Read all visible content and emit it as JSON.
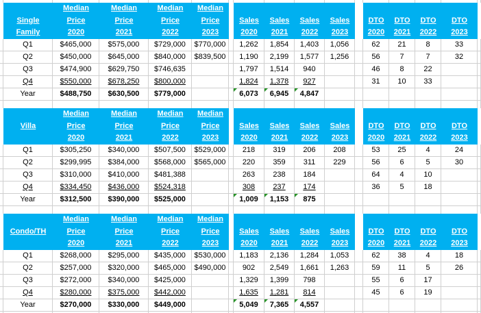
{
  "app": {
    "kind": "spreadsheet-region"
  },
  "colors": {
    "header_bg": "#00B0F0",
    "header_text": "#FFFFFF",
    "grid_line": "#CFCFCF",
    "cell_text": "#000000",
    "marker_green": "#279327"
  },
  "header_labels": {
    "median": "Median",
    "price": "Price",
    "sales": "Sales",
    "dto": "DTO"
  },
  "years": [
    "2020",
    "2021",
    "2022",
    "2023"
  ],
  "tables": [
    {
      "title": "Single Family",
      "title_lines": [
        "",
        "Single",
        "Family"
      ],
      "rows": [
        {
          "label": "Q1",
          "prices": [
            "$465,000",
            "$575,000",
            "$729,000",
            "$770,000"
          ],
          "sales": [
            "1,262",
            "1,854",
            "1,403",
            "1,056"
          ],
          "dto": [
            "62",
            "21",
            "8",
            "33"
          ]
        },
        {
          "label": "Q2",
          "prices": [
            "$450,000",
            "$645,000",
            "$840,000",
            "$839,500"
          ],
          "sales": [
            "1,190",
            "2,199",
            "1,577",
            "1,256"
          ],
          "dto": [
            "56",
            "7",
            "7",
            "32"
          ]
        },
        {
          "label": "Q3",
          "prices": [
            "$474,900",
            "$629,750",
            "$746,635",
            ""
          ],
          "sales": [
            "1,797",
            "1,514",
            "940",
            ""
          ],
          "dto": [
            "46",
            "8",
            "22",
            ""
          ]
        },
        {
          "label": "Q4",
          "underline": true,
          "prices": [
            "$550,000",
            "$678,250",
            "$800,000",
            ""
          ],
          "sales": [
            "1,824",
            "1,378",
            "927",
            ""
          ],
          "dto": [
            "31",
            "10",
            "33",
            ""
          ]
        },
        {
          "label": "Year",
          "bold": true,
          "markers": [
            0,
            1,
            2
          ],
          "prices": [
            "$488,750",
            "$630,500",
            "$779,000",
            ""
          ],
          "sales": [
            "6,073",
            "6,945",
            "4,847",
            ""
          ],
          "dto": [
            "",
            "",
            "",
            ""
          ]
        }
      ]
    },
    {
      "title": "Villa",
      "title_lines": [
        "",
        "Villa",
        ""
      ],
      "rows": [
        {
          "label": "Q1",
          "prices": [
            "$305,250",
            "$340,000",
            "$507,500",
            "$529,000"
          ],
          "sales": [
            "218",
            "319",
            "206",
            "208"
          ],
          "dto": [
            "53",
            "25",
            "4",
            "24"
          ]
        },
        {
          "label": "Q2",
          "prices": [
            "$299,995",
            "$384,000",
            "$568,000",
            "$565,000"
          ],
          "sales": [
            "220",
            "359",
            "311",
            "229"
          ],
          "dto": [
            "56",
            "6",
            "5",
            "30"
          ]
        },
        {
          "label": "Q3",
          "prices": [
            "$310,000",
            "$410,000",
            "$481,388",
            ""
          ],
          "sales": [
            "263",
            "238",
            "184",
            ""
          ],
          "dto": [
            "64",
            "4",
            "10",
            ""
          ]
        },
        {
          "label": "Q4",
          "underline": true,
          "prices": [
            "$334,450",
            "$436,000",
            "$524,318",
            ""
          ],
          "sales": [
            "308",
            "237",
            "174",
            ""
          ],
          "dto": [
            "36",
            "5",
            "18",
            ""
          ]
        },
        {
          "label": "Year",
          "bold": true,
          "markers": [
            0,
            1,
            2
          ],
          "prices": [
            "$312,500",
            "$390,000",
            "$525,000",
            ""
          ],
          "sales": [
            "1,009",
            "1,153",
            "875",
            ""
          ],
          "dto": [
            "",
            "",
            "",
            ""
          ]
        }
      ]
    },
    {
      "title": "Condo/TH",
      "title_lines": [
        "",
        "Condo/TH",
        ""
      ],
      "rows": [
        {
          "label": "Q1",
          "prices": [
            "$268,000",
            "$295,000",
            "$435,000",
            "$530,000"
          ],
          "sales": [
            "1,183",
            "2,136",
            "1,284",
            "1,053"
          ],
          "dto": [
            "62",
            "38",
            "4",
            "18"
          ]
        },
        {
          "label": "Q2",
          "prices": [
            "$257,000",
            "$320,000",
            "$465,000",
            "$490,000"
          ],
          "sales": [
            "902",
            "2,549",
            "1,661",
            "1,263"
          ],
          "dto": [
            "59",
            "11",
            "5",
            "26"
          ]
        },
        {
          "label": "Q3",
          "prices": [
            "$272,000",
            "$340,000",
            "$425,000",
            ""
          ],
          "sales": [
            "1,329",
            "1,399",
            "798",
            ""
          ],
          "dto": [
            "55",
            "6",
            "17",
            ""
          ]
        },
        {
          "label": "Q4",
          "underline": true,
          "prices": [
            "$280,000",
            "$375,000",
            "$442,000",
            ""
          ],
          "sales": [
            "1,635",
            "1,281",
            "814",
            ""
          ],
          "dto": [
            "45",
            "6",
            "19",
            ""
          ]
        },
        {
          "label": "Year",
          "bold": true,
          "markers": [
            0,
            1,
            2
          ],
          "prices": [
            "$270,000",
            "$330,000",
            "$449,000",
            ""
          ],
          "sales": [
            "5,049",
            "7,365",
            "4,557",
            ""
          ],
          "dto": [
            "",
            "",
            "",
            ""
          ]
        }
      ]
    }
  ]
}
